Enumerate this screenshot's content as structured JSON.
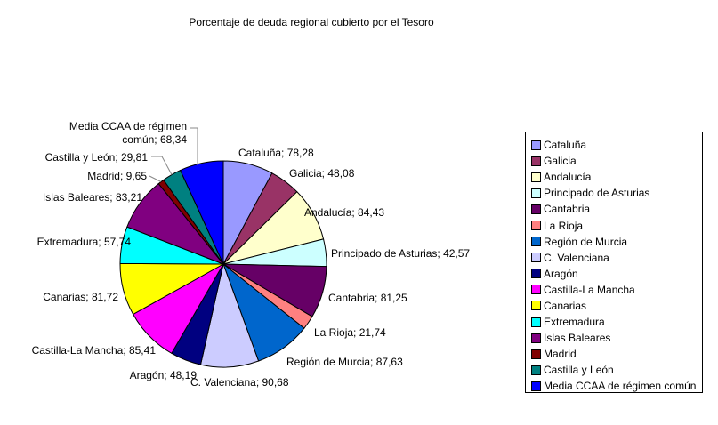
{
  "chart_data": {
    "type": "pie",
    "title": "Porcentaje de deuda regional cubierto por el Tesoro",
    "legend_placement": "right",
    "slices": [
      {
        "name": "Cataluña",
        "value": 78.28,
        "label": "Cataluña; 78,28",
        "color": "#9999FF"
      },
      {
        "name": "Galicia",
        "value": 48.08,
        "label": "Galicia; 48,08",
        "color": "#993366"
      },
      {
        "name": "Andalucía",
        "value": 84.43,
        "label": "Andalucía; 84,43",
        "color": "#FFFFCC"
      },
      {
        "name": "Principado de Asturias",
        "value": 42.57,
        "label": "Principado de Asturias; 42,57",
        "color": "#CCFFFF"
      },
      {
        "name": "Cantabria",
        "value": 81.25,
        "label": "Cantabria; 81,25",
        "color": "#660066"
      },
      {
        "name": "La Rioja",
        "value": 21.74,
        "label": "La Rioja; 21,74",
        "color": "#FF8080"
      },
      {
        "name": "Región de Murcia",
        "value": 87.63,
        "label": "Región de Murcia; 87,63",
        "color": "#0066CC"
      },
      {
        "name": "C. Valenciana",
        "value": 90.68,
        "label": "C. Valenciana; 90,68",
        "color": "#CCCCFF"
      },
      {
        "name": "Aragón",
        "value": 48.19,
        "label": "Aragón; 48,19",
        "color": "#000080"
      },
      {
        "name": "Castilla-La Mancha",
        "value": 85.41,
        "label": "Castilla-La Mancha; 85,41",
        "color": "#FF00FF"
      },
      {
        "name": "Canarias",
        "value": 81.72,
        "label": "Canarias; 81,72",
        "color": "#FFFF00"
      },
      {
        "name": "Extremadura",
        "value": 57.74,
        "label": "Extremadura; 57,74",
        "color": "#00FFFF"
      },
      {
        "name": "Islas Baleares",
        "value": 83.21,
        "label": "Islas Baleares; 83,21",
        "color": "#800080"
      },
      {
        "name": "Madrid",
        "value": 9.65,
        "label": "Madrid; 9,65",
        "color": "#800000"
      },
      {
        "name": "Castilla y León",
        "value": 29.81,
        "label": "Castilla y León; 29,81",
        "color": "#008080"
      },
      {
        "name": "Media CCAA de régimen común",
        "value": 68.34,
        "label": "Media CCAA de régimen común; 68,34",
        "label_lines": [
          "Media CCAA de régimen",
          "común; 68,34"
        ],
        "color": "#0000FF"
      }
    ]
  }
}
